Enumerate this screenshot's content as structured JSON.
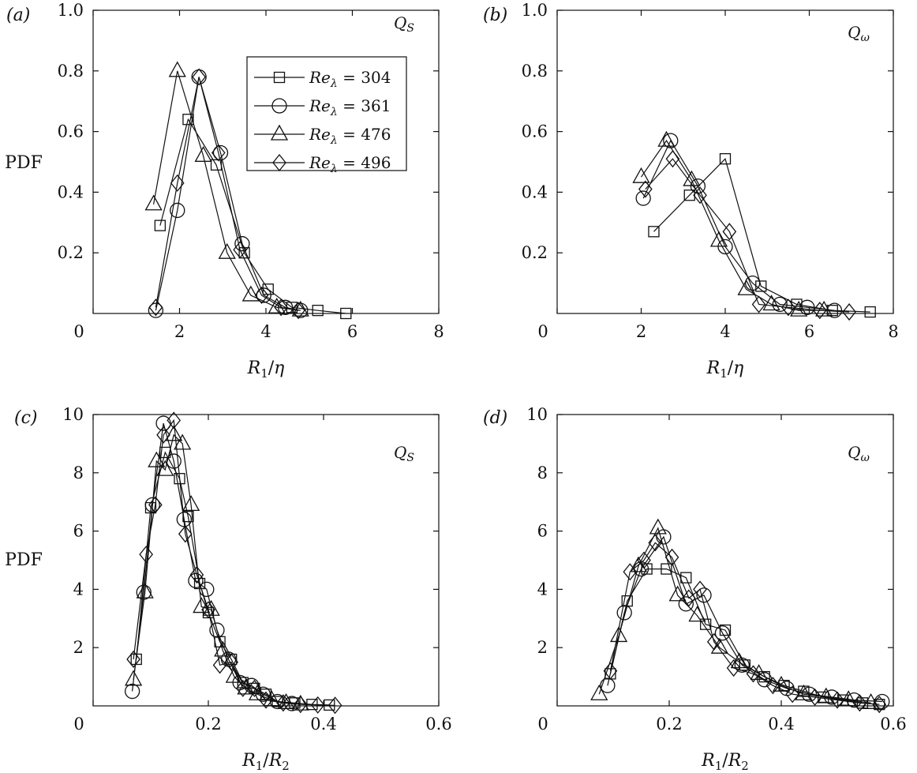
{
  "figure": {
    "ylabel_top": "PDF",
    "ylabel_bottom": "PDF"
  },
  "legend": {
    "entries": [
      {
        "label": "Re",
        "sub": "λ",
        "value": " = 304",
        "marker": "square"
      },
      {
        "label": "Re",
        "sub": "λ",
        "value": " = 361",
        "marker": "circle"
      },
      {
        "label": "Re",
        "sub": "λ",
        "value": " = 476",
        "marker": "triangle"
      },
      {
        "label": "Re",
        "sub": "λ",
        "value": " = 496",
        "marker": "diamond"
      }
    ]
  },
  "chart_data": [
    {
      "panel": "(a)",
      "type": "line",
      "corner_label": "Q",
      "corner_sub": "S",
      "xlabel": "R",
      "xlabel_sub": "1",
      "xlabel_tail": "/η",
      "xlim": [
        0,
        8
      ],
      "ylim": [
        0,
        1.0
      ],
      "xticks": [
        "0",
        "2",
        "4",
        "6",
        "8"
      ],
      "yticks": [
        "0.2",
        "0.4",
        "0.6",
        "0.8",
        "1.0"
      ],
      "origin_label": "0",
      "series": [
        {
          "name": "Reλ = 304",
          "marker": "square",
          "x": [
            1.55,
            2.2,
            2.85,
            3.5,
            4.05,
            4.6,
            5.2,
            5.85
          ],
          "y": [
            0.29,
            0.64,
            0.49,
            0.2,
            0.08,
            0.02,
            0.01,
            0.0
          ]
        },
        {
          "name": "Reλ = 361",
          "marker": "circle",
          "x": [
            1.45,
            1.95,
            2.45,
            2.95,
            3.45,
            3.95,
            4.45,
            4.8
          ],
          "y": [
            0.01,
            0.34,
            0.78,
            0.53,
            0.23,
            0.06,
            0.02,
            0.01
          ]
        },
        {
          "name": "Reλ = 476",
          "marker": "triangle",
          "x": [
            1.4,
            1.95,
            2.55,
            3.1,
            3.65,
            4.25,
            4.8
          ],
          "y": [
            0.36,
            0.8,
            0.52,
            0.2,
            0.06,
            0.02,
            0.01
          ]
        },
        {
          "name": "Reλ = 496",
          "marker": "diamond",
          "x": [
            1.45,
            1.95,
            2.45,
            2.9,
            3.4,
            3.9,
            4.35,
            4.75
          ],
          "y": [
            0.02,
            0.43,
            0.78,
            0.53,
            0.21,
            0.06,
            0.02,
            0.01
          ]
        }
      ]
    },
    {
      "panel": "(b)",
      "type": "line",
      "corner_label": "Q",
      "corner_sub": "ω",
      "xlabel": "R",
      "xlabel_sub": "1",
      "xlabel_tail": "/η",
      "xlim": [
        0,
        8
      ],
      "ylim": [
        0,
        1.0
      ],
      "xticks": [
        "0",
        "2",
        "4",
        "6",
        "8"
      ],
      "yticks": [
        "0.2",
        "0.4",
        "0.6",
        "0.8",
        "1.0"
      ],
      "origin_label": "0",
      "series": [
        {
          "name": "Reλ = 304",
          "marker": "square",
          "x": [
            2.3,
            3.15,
            4.0,
            4.85,
            5.7,
            6.55,
            7.45
          ],
          "y": [
            0.27,
            0.39,
            0.51,
            0.09,
            0.03,
            0.01,
            0.005
          ]
        },
        {
          "name": "Reλ = 361",
          "marker": "circle",
          "x": [
            2.05,
            2.7,
            3.35,
            4.0,
            4.65,
            5.3,
            5.95,
            6.6
          ],
          "y": [
            0.38,
            0.57,
            0.42,
            0.22,
            0.1,
            0.03,
            0.02,
            0.01
          ]
        },
        {
          "name": "Reλ = 476",
          "marker": "triangle",
          "x": [
            2.0,
            2.6,
            3.2,
            3.85,
            4.5,
            5.1,
            5.75,
            6.35
          ],
          "y": [
            0.45,
            0.57,
            0.44,
            0.24,
            0.08,
            0.03,
            0.01,
            0.01
          ]
        },
        {
          "name": "Reλ = 496",
          "marker": "diamond",
          "x": [
            2.1,
            2.75,
            3.4,
            4.1,
            4.8,
            5.5,
            6.25,
            6.95
          ],
          "y": [
            0.41,
            0.51,
            0.39,
            0.27,
            0.03,
            0.02,
            0.01,
            0.005
          ]
        }
      ]
    },
    {
      "panel": "(c)",
      "type": "line",
      "corner_label": "Q",
      "corner_sub": "S",
      "xlabel": "R",
      "xlabel_sub": "1",
      "xlabel_tail": "/R",
      "xlabel_sub2": "2",
      "xlim": [
        0,
        0.6
      ],
      "ylim": [
        0,
        10
      ],
      "xticks": [
        "0",
        "0.2",
        "0.4",
        "0.6"
      ],
      "yticks": [
        "2",
        "4",
        "6",
        "8",
        "10"
      ],
      "origin_label": "0",
      "series": [
        {
          "name": "Reλ = 304",
          "marker": "square",
          "x": [
            0.075,
            0.1,
            0.125,
            0.15,
            0.165,
            0.185,
            0.2,
            0.22,
            0.24,
            0.26,
            0.28,
            0.3,
            0.32,
            0.35,
            0.38,
            0.41
          ],
          "y": [
            1.6,
            6.8,
            8.7,
            7.8,
            6.5,
            4.2,
            3.2,
            2.2,
            1.6,
            0.8,
            0.6,
            0.4,
            0.15,
            0.1,
            0.05,
            0.03
          ]
        },
        {
          "name": "Reλ = 361",
          "marker": "circle",
          "x": [
            0.068,
            0.088,
            0.103,
            0.122,
            0.14,
            0.158,
            0.178,
            0.197,
            0.215,
            0.235,
            0.255,
            0.275,
            0.295,
            0.32,
            0.345
          ],
          "y": [
            0.5,
            3.9,
            6.9,
            9.7,
            8.4,
            6.4,
            4.3,
            4.0,
            2.6,
            1.6,
            0.8,
            0.7,
            0.4,
            0.15,
            0.08
          ]
        },
        {
          "name": "Reλ = 476",
          "marker": "triangle",
          "x": [
            0.07,
            0.09,
            0.11,
            0.125,
            0.14,
            0.155,
            0.17,
            0.188,
            0.205,
            0.225,
            0.245,
            0.265,
            0.285,
            0.31,
            0.335,
            0.36
          ],
          "y": [
            0.9,
            3.9,
            8.4,
            8.1,
            9.3,
            9.0,
            6.9,
            3.4,
            3.3,
            1.9,
            1.0,
            0.6,
            0.4,
            0.2,
            0.1,
            0.05
          ]
        },
        {
          "name": "Reλ = 496",
          "marker": "diamond",
          "x": [
            0.07,
            0.092,
            0.108,
            0.122,
            0.14,
            0.16,
            0.18,
            0.2,
            0.22,
            0.24,
            0.26,
            0.28,
            0.3,
            0.33,
            0.36,
            0.39,
            0.42
          ],
          "y": [
            1.6,
            5.2,
            6.9,
            9.3,
            9.8,
            5.9,
            4.5,
            3.3,
            1.4,
            1.5,
            0.6,
            0.6,
            0.2,
            0.1,
            0.05,
            0.03,
            0.02
          ]
        }
      ]
    },
    {
      "panel": "(d)",
      "type": "line",
      "corner_label": "Q",
      "corner_sub": "ω",
      "xlabel": "R",
      "xlabel_sub": "1",
      "xlabel_tail": "/R",
      "xlabel_sub2": "2",
      "xlim": [
        0,
        0.6
      ],
      "ylim": [
        0,
        10
      ],
      "xticks": [
        "0",
        "0.2",
        "0.4",
        "0.6"
      ],
      "yticks": [
        "2",
        "4",
        "6",
        "8",
        "10"
      ],
      "origin_label": "0",
      "series": [
        {
          "name": "Reλ = 304",
          "marker": "square",
          "x": [
            0.095,
            0.125,
            0.16,
            0.195,
            0.23,
            0.265,
            0.3,
            0.335,
            0.37,
            0.405,
            0.44,
            0.475,
            0.51,
            0.545,
            0.575
          ],
          "y": [
            1.1,
            3.6,
            4.7,
            4.7,
            4.4,
            2.8,
            2.6,
            1.4,
            1.0,
            0.7,
            0.5,
            0.3,
            0.2,
            0.1,
            0.05
          ]
        },
        {
          "name": "Reλ = 361",
          "marker": "circle",
          "x": [
            0.09,
            0.12,
            0.15,
            0.19,
            0.23,
            0.262,
            0.295,
            0.33,
            0.37,
            0.41,
            0.45,
            0.49,
            0.53,
            0.58
          ],
          "y": [
            0.7,
            3.2,
            4.7,
            5.8,
            3.5,
            3.8,
            2.5,
            1.4,
            0.9,
            0.6,
            0.4,
            0.3,
            0.2,
            0.15
          ]
        },
        {
          "name": "Reλ = 476",
          "marker": "triangle",
          "x": [
            0.075,
            0.11,
            0.145,
            0.18,
            0.215,
            0.25,
            0.29,
            0.325,
            0.36,
            0.4,
            0.44,
            0.48,
            0.52,
            0.56
          ],
          "y": [
            0.4,
            2.4,
            4.8,
            6.1,
            3.8,
            3.1,
            2.0,
            1.5,
            1.1,
            0.7,
            0.4,
            0.3,
            0.2,
            0.1
          ]
        },
        {
          "name": "Reλ = 496",
          "marker": "diamond",
          "x": [
            0.095,
            0.13,
            0.155,
            0.175,
            0.205,
            0.235,
            0.255,
            0.28,
            0.315,
            0.35,
            0.385,
            0.42,
            0.46,
            0.5,
            0.54,
            0.575
          ],
          "y": [
            1.2,
            4.6,
            5.0,
            5.6,
            5.1,
            3.7,
            4.0,
            2.2,
            1.3,
            1.1,
            0.7,
            0.4,
            0.3,
            0.2,
            0.1,
            0.05
          ]
        }
      ]
    }
  ]
}
